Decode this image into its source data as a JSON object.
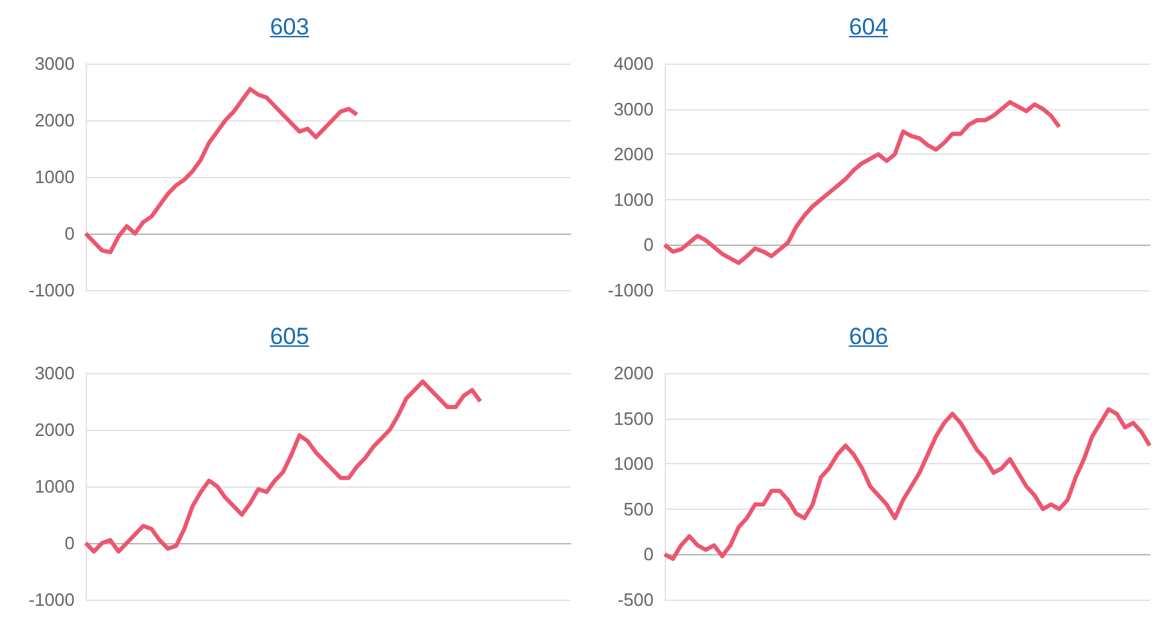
{
  "chart_data": [
    {
      "type": "line",
      "title": "603",
      "color": "#ec5670",
      "grid": "y",
      "tick_labels": "y",
      "ylim": [
        -1000,
        3000
      ],
      "yticks": [
        -1000,
        0,
        1000,
        2000,
        3000
      ],
      "categories": [
        null,
        null,
        null,
        null,
        null,
        null,
        null,
        null,
        null,
        null,
        null,
        null,
        null,
        null,
        null,
        null,
        null,
        null,
        null,
        null,
        null,
        null,
        null,
        null,
        null,
        null,
        null,
        null,
        null,
        null,
        null,
        null,
        null,
        null,
        null,
        null,
        null,
        null,
        null,
        null,
        null,
        null,
        null,
        null,
        null,
        null,
        null,
        null,
        null,
        null,
        null,
        null,
        null,
        null,
        null,
        null,
        null,
        null,
        null,
        null
      ],
      "values": [
        0,
        -150,
        -300,
        -330,
        -50,
        130,
        0,
        200,
        300,
        500,
        700,
        850,
        950,
        1100,
        1300,
        1600,
        1800,
        2000,
        2150,
        2350,
        2550,
        2450,
        2400,
        2250,
        2100,
        1950,
        1800,
        1850,
        1700,
        1850,
        2000,
        2150,
        2200,
        2100,
        null,
        null,
        null,
        null,
        null,
        null,
        null,
        null,
        null,
        null,
        null,
        null,
        null,
        null,
        null,
        null,
        null,
        null,
        null,
        null,
        null,
        null,
        null,
        null,
        null,
        null
      ]
    },
    {
      "type": "line",
      "title": "604",
      "color": "#ec5670",
      "grid": "y",
      "tick_labels": "y",
      "ylim": [
        -1000,
        4000
      ],
      "yticks": [
        -1000,
        0,
        1000,
        2000,
        3000,
        4000
      ],
      "categories": [
        null,
        null,
        null,
        null,
        null,
        null,
        null,
        null,
        null,
        null,
        null,
        null,
        null,
        null,
        null,
        null,
        null,
        null,
        null,
        null,
        null,
        null,
        null,
        null,
        null,
        null,
        null,
        null,
        null,
        null,
        null,
        null,
        null,
        null,
        null,
        null,
        null,
        null,
        null,
        null,
        null,
        null,
        null,
        null,
        null,
        null,
        null,
        null,
        null,
        null,
        null,
        null,
        null,
        null,
        null,
        null,
        null,
        null,
        null,
        null
      ],
      "values": [
        0,
        -150,
        -100,
        50,
        200,
        100,
        -50,
        -200,
        -300,
        -400,
        -250,
        -80,
        -150,
        -250,
        -100,
        50,
        400,
        650,
        850,
        1000,
        1150,
        1300,
        1450,
        1650,
        1800,
        1900,
        2000,
        1850,
        2000,
        2500,
        2400,
        2350,
        2200,
        2100,
        2250,
        2450,
        2450,
        2650,
        2750,
        2750,
        2850,
        3000,
        3150,
        3050,
        2950,
        3100,
        3000,
        2850,
        2600,
        null,
        null,
        null,
        null,
        null,
        null,
        null,
        null,
        null,
        null,
        null
      ]
    },
    {
      "type": "line",
      "title": "605",
      "color": "#ec5670",
      "grid": "y",
      "tick_labels": "y",
      "ylim": [
        -1000,
        3000
      ],
      "yticks": [
        -1000,
        0,
        1000,
        2000,
        3000
      ],
      "categories": [
        null,
        null,
        null,
        null,
        null,
        null,
        null,
        null,
        null,
        null,
        null,
        null,
        null,
        null,
        null,
        null,
        null,
        null,
        null,
        null,
        null,
        null,
        null,
        null,
        null,
        null,
        null,
        null,
        null,
        null,
        null,
        null,
        null,
        null,
        null,
        null,
        null,
        null,
        null,
        null,
        null,
        null,
        null,
        null,
        null,
        null,
        null,
        null,
        null,
        null,
        null,
        null,
        null,
        null,
        null,
        null,
        null,
        null,
        null,
        null
      ],
      "values": [
        0,
        -150,
        0,
        50,
        -150,
        0,
        150,
        300,
        250,
        50,
        -100,
        -50,
        250,
        650,
        900,
        1100,
        1000,
        800,
        650,
        500,
        700,
        950,
        900,
        1100,
        1250,
        1550,
        1900,
        1800,
        1600,
        1450,
        1300,
        1150,
        1150,
        1350,
        1500,
        1700,
        1850,
        2000,
        2250,
        2550,
        2700,
        2850,
        2700,
        2550,
        2400,
        2400,
        2600,
        2700,
        2500,
        null,
        null,
        null,
        null,
        null,
        null,
        null,
        null,
        null,
        null,
        null
      ]
    },
    {
      "type": "line",
      "title": "606",
      "color": "#ec5670",
      "grid": "y",
      "tick_labels": "y",
      "ylim": [
        -500,
        2000
      ],
      "yticks": [
        -500,
        0,
        500,
        1000,
        1500,
        2000
      ],
      "categories": [
        null,
        null,
        null,
        null,
        null,
        null,
        null,
        null,
        null,
        null,
        null,
        null,
        null,
        null,
        null,
        null,
        null,
        null,
        null,
        null,
        null,
        null,
        null,
        null,
        null,
        null,
        null,
        null,
        null,
        null,
        null,
        null,
        null,
        null,
        null,
        null,
        null,
        null,
        null,
        null,
        null,
        null,
        null,
        null,
        null,
        null,
        null,
        null,
        null,
        null,
        null,
        null,
        null,
        null,
        null,
        null,
        null,
        null,
        null,
        null
      ],
      "values": [
        0,
        -50,
        100,
        200,
        100,
        50,
        100,
        -20,
        100,
        300,
        400,
        550,
        550,
        700,
        700,
        600,
        450,
        400,
        550,
        850,
        950,
        1100,
        1200,
        1100,
        950,
        750,
        650,
        550,
        400,
        600,
        750,
        900,
        1100,
        1300,
        1450,
        1550,
        1450,
        1300,
        1150,
        1050,
        900,
        950,
        1050,
        900,
        750,
        650,
        500,
        550,
        500,
        600,
        850,
        1050,
        1300,
        1450,
        1600,
        1550,
        1400,
        1450,
        1350,
        1200
      ]
    }
  ]
}
